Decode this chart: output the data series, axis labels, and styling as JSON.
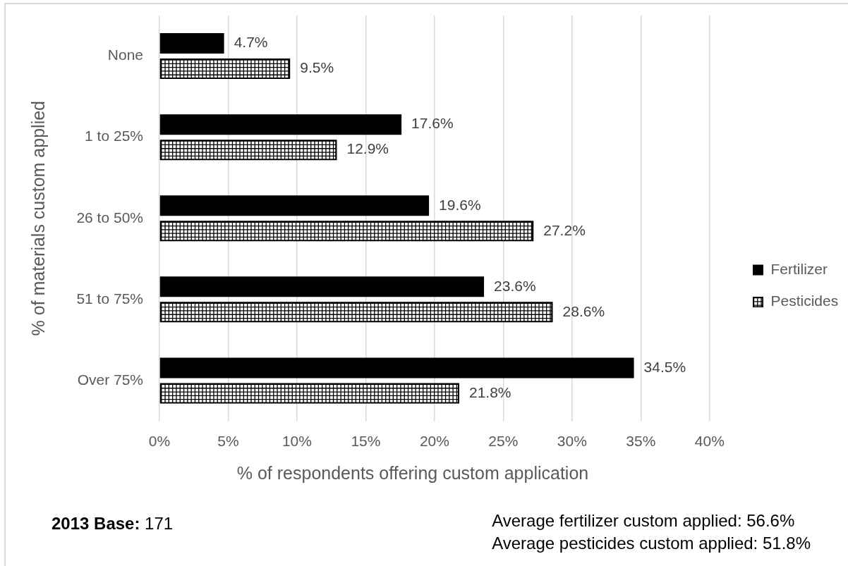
{
  "chart_data": {
    "type": "bar",
    "orientation": "horizontal",
    "xlabel": "% of respondents offering custom application",
    "ylabel": "% of materials custom applied",
    "categories": [
      "None",
      "1 to 25%",
      "26 to 50%",
      "51 to 75%",
      "Over 75%"
    ],
    "series": [
      {
        "name": "Fertilizer",
        "color": "#000000",
        "values": [
          4.7,
          17.6,
          19.6,
          23.6,
          34.5
        ],
        "value_labels": [
          "4.7%",
          "17.6%",
          "19.6%",
          "23.6%",
          "34.5%"
        ]
      },
      {
        "name": "Pesticides",
        "color": "#000000",
        "values": [
          9.5,
          12.9,
          27.2,
          28.6,
          21.8
        ],
        "value_labels": [
          "9.5%",
          "12.9%",
          "27.2%",
          "28.6%",
          "21.8%"
        ]
      }
    ],
    "xlim": [
      0,
      40
    ],
    "xticks": [
      {
        "value": 0,
        "label": "0%"
      },
      {
        "value": 5,
        "label": "5%"
      },
      {
        "value": 10,
        "label": "10%"
      },
      {
        "value": 15,
        "label": "15%"
      },
      {
        "value": 20,
        "label": "20%"
      },
      {
        "value": 25,
        "label": "25%"
      },
      {
        "value": 30,
        "label": "30%"
      },
      {
        "value": 35,
        "label": "35%"
      },
      {
        "value": 40,
        "label": "40%"
      }
    ],
    "grid": "x",
    "legend": "right",
    "annotations": [
      "2013 Base: 171",
      "Average fertilizer custom applied: 56.6%",
      "Average pesticides custom applied: 51.8%"
    ]
  }
}
